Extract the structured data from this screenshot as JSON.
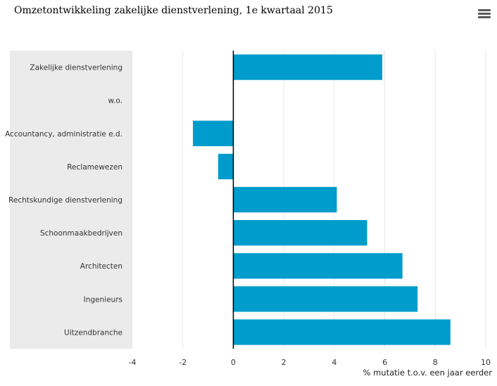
{
  "title": "Omzetontwikkeling zakelijke dienstverlening, 1e kwartaal 2015",
  "menu_icon": "hamburger-menu-icon",
  "colors": {
    "bar": "#009ccc",
    "label_band": "#ebebeb",
    "grid": "#e6e6e6",
    "zero_line": "#000000"
  },
  "chart_data": {
    "type": "bar",
    "orientation": "horizontal",
    "title": "Omzetontwikkeling zakelijke dienstverlening, 1e kwartaal 2015",
    "xlabel": "% mutatie t.o.v. een jaar eerder",
    "ylabel": "",
    "xlim": [
      -4,
      10
    ],
    "xticks": [
      -4,
      -2,
      0,
      2,
      4,
      6,
      8,
      10
    ],
    "grid": true,
    "categories": [
      "Zakelijke dienstverlening",
      "w.o.",
      "Accountancy, administratie e.d.",
      "Reclamewezen",
      "Rechtskundige dienstverlening",
      "Schoonmaakbedrijven",
      "Architecten",
      "Ingenieurs",
      "Uitzendbranche"
    ],
    "values": [
      5.9,
      null,
      -1.6,
      -0.6,
      4.1,
      5.3,
      6.7,
      7.3,
      8.6
    ]
  }
}
